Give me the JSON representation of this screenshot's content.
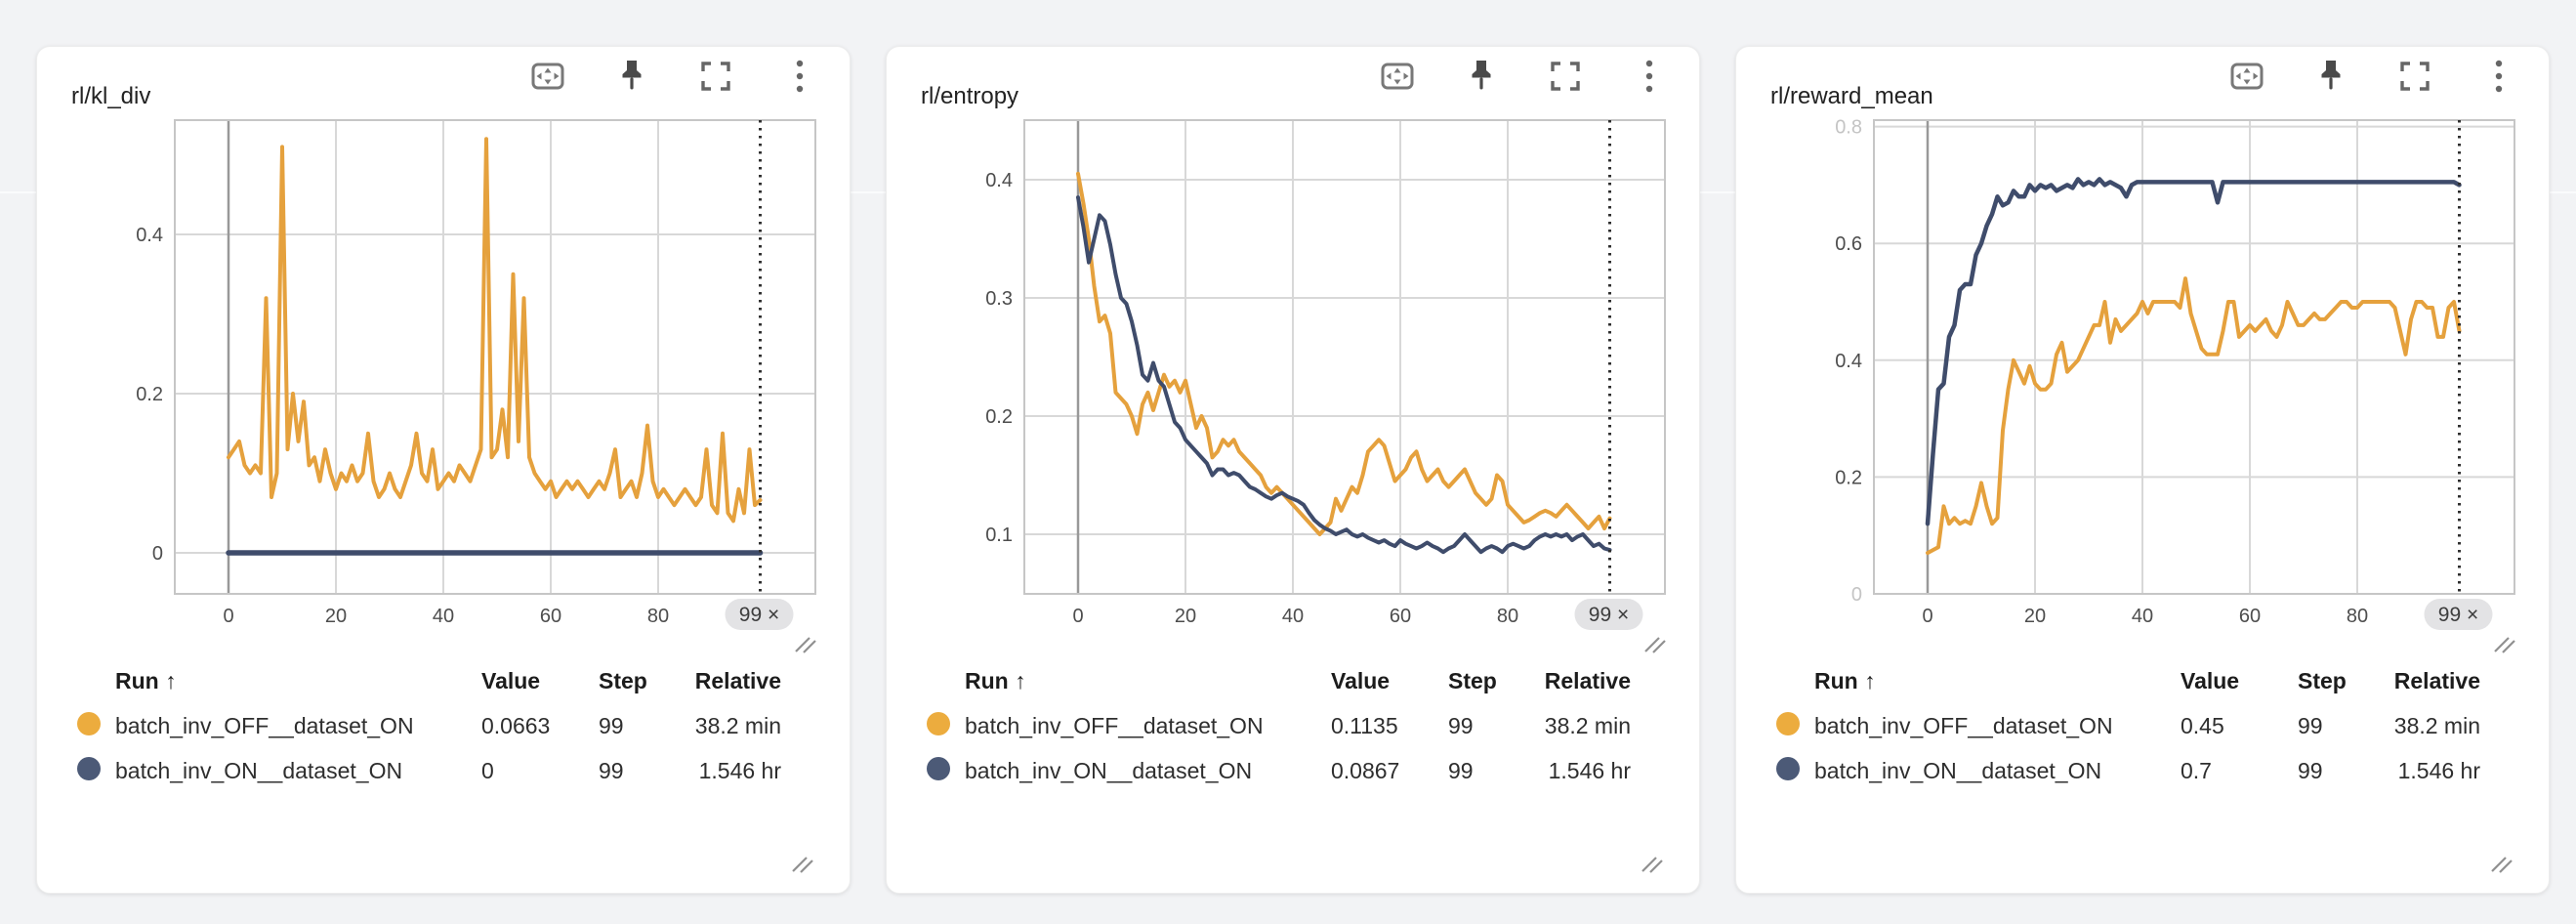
{
  "colors": {
    "orange": "#E5A13D",
    "navy": "#3F4C6B",
    "dot_orange": "#ECAC3E",
    "dot_navy": "#4C5A77",
    "grid": "#d8d8d8",
    "grid_dark": "#999999",
    "plot_border": "#c6c6c6",
    "tick_text": "#4d4d4d",
    "tick_text_faded": "#c4c4c4",
    "marker_line": "#2e2e2e",
    "badge_bg": "#e3e3e5",
    "badge_text": "#3d3d3d"
  },
  "table_headers": {
    "run": "Run ↑",
    "value": "Value",
    "step": "Step",
    "relative": "Relative"
  },
  "chart_data": [
    {
      "type": "line",
      "title": "rl/kl_div",
      "end_badge": "99 ×",
      "marker_x": 99,
      "x_ticks": [
        0,
        20,
        40,
        60,
        80
      ],
      "y_ticks": [
        {
          "v": 0,
          "label": "0"
        },
        {
          "v": 0.2,
          "label": "0.2"
        },
        {
          "v": 0.4,
          "label": "0.4"
        }
      ],
      "y_domain": [
        -0.0515,
        0.5436
      ],
      "series": [
        {
          "name": "batch_inv_OFF__dataset_ON",
          "color": "#E5A13D",
          "width": 4,
          "values": [
            0.12,
            0.13,
            0.14,
            0.11,
            0.1,
            0.11,
            0.1,
            0.32,
            0.07,
            0.1,
            0.51,
            0.13,
            0.2,
            0.14,
            0.19,
            0.11,
            0.12,
            0.09,
            0.13,
            0.1,
            0.08,
            0.1,
            0.09,
            0.11,
            0.09,
            0.1,
            0.15,
            0.09,
            0.07,
            0.08,
            0.1,
            0.08,
            0.07,
            0.09,
            0.11,
            0.15,
            0.1,
            0.09,
            0.13,
            0.08,
            0.09,
            0.1,
            0.09,
            0.11,
            0.1,
            0.09,
            0.11,
            0.13,
            0.52,
            0.12,
            0.13,
            0.18,
            0.12,
            0.35,
            0.14,
            0.32,
            0.12,
            0.1,
            0.09,
            0.08,
            0.09,
            0.07,
            0.08,
            0.09,
            0.08,
            0.09,
            0.08,
            0.07,
            0.08,
            0.09,
            0.08,
            0.1,
            0.13,
            0.07,
            0.08,
            0.09,
            0.07,
            0.1,
            0.16,
            0.09,
            0.07,
            0.08,
            0.07,
            0.06,
            0.07,
            0.08,
            0.07,
            0.06,
            0.07,
            0.13,
            0.06,
            0.05,
            0.15,
            0.05,
            0.04,
            0.08,
            0.05,
            0.13,
            0.06,
            0.0663
          ]
        },
        {
          "name": "batch_inv_ON__dataset_ON",
          "color": "#3F4C6B",
          "width": 5.5,
          "x": [
            0,
            99
          ],
          "values": [
            0,
            0
          ]
        }
      ],
      "table_rows": [
        {
          "dot": "#ECAC3E",
          "run": "batch_inv_OFF__dataset_ON",
          "value": "0.0663",
          "step": "99",
          "relative": "38.2 min"
        },
        {
          "dot": "#4C5A77",
          "run": "batch_inv_ON__dataset_ON",
          "value": "0",
          "step": "99",
          "relative": "1.546 hr"
        }
      ]
    },
    {
      "type": "line",
      "title": "rl/entropy",
      "end_badge": "99 ×",
      "marker_x": 99,
      "x_ticks": [
        0,
        20,
        40,
        60,
        80
      ],
      "y_ticks": [
        {
          "v": 0.1,
          "label": "0.1"
        },
        {
          "v": 0.2,
          "label": "0.2"
        },
        {
          "v": 0.3,
          "label": "0.3"
        },
        {
          "v": 0.4,
          "label": "0.4"
        }
      ],
      "y_domain": [
        0.0496,
        0.4504
      ],
      "series": [
        {
          "name": "batch_inv_OFF__dataset_ON",
          "color": "#E5A13D",
          "width": 4,
          "values": [
            0.405,
            0.38,
            0.35,
            0.31,
            0.28,
            0.285,
            0.27,
            0.22,
            0.215,
            0.21,
            0.2,
            0.185,
            0.21,
            0.22,
            0.205,
            0.22,
            0.235,
            0.225,
            0.23,
            0.22,
            0.23,
            0.21,
            0.19,
            0.2,
            0.19,
            0.165,
            0.17,
            0.18,
            0.175,
            0.18,
            0.17,
            0.165,
            0.16,
            0.155,
            0.15,
            0.14,
            0.135,
            0.14,
            0.135,
            0.13,
            0.125,
            0.12,
            0.115,
            0.11,
            0.105,
            0.1,
            0.105,
            0.11,
            0.13,
            0.12,
            0.13,
            0.14,
            0.135,
            0.15,
            0.17,
            0.175,
            0.18,
            0.175,
            0.16,
            0.145,
            0.15,
            0.155,
            0.165,
            0.17,
            0.155,
            0.145,
            0.15,
            0.155,
            0.145,
            0.14,
            0.145,
            0.15,
            0.155,
            0.145,
            0.135,
            0.13,
            0.125,
            0.13,
            0.15,
            0.145,
            0.125,
            0.12,
            0.115,
            0.11,
            0.112,
            0.115,
            0.118,
            0.12,
            0.118,
            0.115,
            0.12,
            0.125,
            0.12,
            0.115,
            0.11,
            0.105,
            0.11,
            0.115,
            0.105,
            0.1135
          ]
        },
        {
          "name": "batch_inv_ON__dataset_ON",
          "color": "#3F4C6B",
          "width": 4,
          "values": [
            0.385,
            0.36,
            0.33,
            0.35,
            0.37,
            0.365,
            0.345,
            0.32,
            0.3,
            0.295,
            0.28,
            0.26,
            0.235,
            0.23,
            0.245,
            0.23,
            0.225,
            0.21,
            0.195,
            0.19,
            0.18,
            0.175,
            0.17,
            0.165,
            0.16,
            0.15,
            0.155,
            0.155,
            0.15,
            0.152,
            0.15,
            0.145,
            0.14,
            0.138,
            0.135,
            0.132,
            0.13,
            0.133,
            0.135,
            0.132,
            0.13,
            0.128,
            0.125,
            0.118,
            0.112,
            0.108,
            0.105,
            0.103,
            0.1,
            0.102,
            0.104,
            0.1,
            0.098,
            0.1,
            0.097,
            0.095,
            0.093,
            0.095,
            0.092,
            0.09,
            0.095,
            0.092,
            0.09,
            0.088,
            0.09,
            0.093,
            0.09,
            0.088,
            0.085,
            0.088,
            0.09,
            0.095,
            0.1,
            0.095,
            0.09,
            0.085,
            0.088,
            0.09,
            0.088,
            0.085,
            0.09,
            0.092,
            0.09,
            0.088,
            0.09,
            0.095,
            0.098,
            0.1,
            0.098,
            0.1,
            0.098,
            0.1,
            0.095,
            0.098,
            0.1,
            0.095,
            0.09,
            0.092,
            0.088,
            0.0867
          ]
        }
      ],
      "table_rows": [
        {
          "dot": "#ECAC3E",
          "run": "batch_inv_OFF__dataset_ON",
          "value": "0.1135",
          "step": "99",
          "relative": "38.2 min"
        },
        {
          "dot": "#4C5A77",
          "run": "batch_inv_ON__dataset_ON",
          "value": "0.0867",
          "step": "99",
          "relative": "1.546 hr"
        }
      ]
    },
    {
      "type": "line",
      "title": "rl/reward_mean",
      "end_badge": "99 ×",
      "marker_x": 99,
      "x_ticks": [
        0,
        20,
        40,
        60,
        80
      ],
      "y_ticks": [
        {
          "v": 0,
          "label": "0",
          "faded": true
        },
        {
          "v": 0.2,
          "label": "0.2"
        },
        {
          "v": 0.4,
          "label": "0.4"
        },
        {
          "v": 0.6,
          "label": "0.6"
        },
        {
          "v": 0.8,
          "label": "0.8",
          "faded": true
        }
      ],
      "y_domain": [
        0.0,
        0.811
      ],
      "series": [
        {
          "name": "batch_inv_OFF__dataset_ON",
          "color": "#E5A13D",
          "width": 4,
          "values": [
            0.07,
            0.075,
            0.08,
            0.15,
            0.12,
            0.13,
            0.12,
            0.125,
            0.12,
            0.15,
            0.19,
            0.15,
            0.12,
            0.13,
            0.28,
            0.35,
            0.4,
            0.38,
            0.36,
            0.39,
            0.36,
            0.35,
            0.35,
            0.36,
            0.41,
            0.43,
            0.38,
            0.39,
            0.4,
            0.42,
            0.44,
            0.46,
            0.46,
            0.5,
            0.43,
            0.47,
            0.45,
            0.46,
            0.47,
            0.48,
            0.5,
            0.48,
            0.5,
            0.5,
            0.5,
            0.5,
            0.5,
            0.49,
            0.54,
            0.48,
            0.45,
            0.42,
            0.41,
            0.41,
            0.41,
            0.45,
            0.5,
            0.5,
            0.44,
            0.45,
            0.46,
            0.45,
            0.46,
            0.47,
            0.45,
            0.44,
            0.46,
            0.5,
            0.48,
            0.46,
            0.46,
            0.47,
            0.48,
            0.47,
            0.47,
            0.48,
            0.49,
            0.5,
            0.5,
            0.49,
            0.49,
            0.5,
            0.5,
            0.5,
            0.5,
            0.5,
            0.5,
            0.49,
            0.45,
            0.41,
            0.47,
            0.5,
            0.5,
            0.49,
            0.49,
            0.44,
            0.44,
            0.49,
            0.5,
            0.45
          ]
        },
        {
          "name": "batch_inv_ON__dataset_ON",
          "color": "#3F4C6B",
          "width": 4.5,
          "values": [
            0.12,
            0.24,
            0.35,
            0.36,
            0.44,
            0.46,
            0.52,
            0.53,
            0.53,
            0.58,
            0.6,
            0.63,
            0.65,
            0.68,
            0.665,
            0.67,
            0.69,
            0.68,
            0.68,
            0.7,
            0.69,
            0.7,
            0.695,
            0.7,
            0.69,
            0.695,
            0.7,
            0.695,
            0.71,
            0.7,
            0.705,
            0.7,
            0.71,
            0.7,
            0.705,
            0.7,
            0.695,
            0.68,
            0.7,
            0.705,
            0.705,
            0.705,
            0.705,
            0.705,
            0.705,
            0.705,
            0.705,
            0.705,
            0.705,
            0.705,
            0.705,
            0.705,
            0.705,
            0.705,
            0.67,
            0.705,
            0.705,
            0.705,
            0.705,
            0.705,
            0.705,
            0.705,
            0.705,
            0.705,
            0.705,
            0.705,
            0.705,
            0.705,
            0.705,
            0.705,
            0.705,
            0.705,
            0.705,
            0.705,
            0.705,
            0.705,
            0.705,
            0.705,
            0.705,
            0.705,
            0.705,
            0.705,
            0.705,
            0.705,
            0.705,
            0.705,
            0.705,
            0.705,
            0.705,
            0.705,
            0.705,
            0.705,
            0.705,
            0.705,
            0.705,
            0.705,
            0.705,
            0.705,
            0.705,
            0.7
          ]
        }
      ],
      "table_rows": [
        {
          "dot": "#ECAC3E",
          "run": "batch_inv_OFF__dataset_ON",
          "value": "0.45",
          "step": "99",
          "relative": "38.2 min"
        },
        {
          "dot": "#4C5A77",
          "run": "batch_inv_ON__dataset_ON",
          "value": "0.7",
          "step": "99",
          "relative": "1.546 hr"
        }
      ]
    }
  ]
}
